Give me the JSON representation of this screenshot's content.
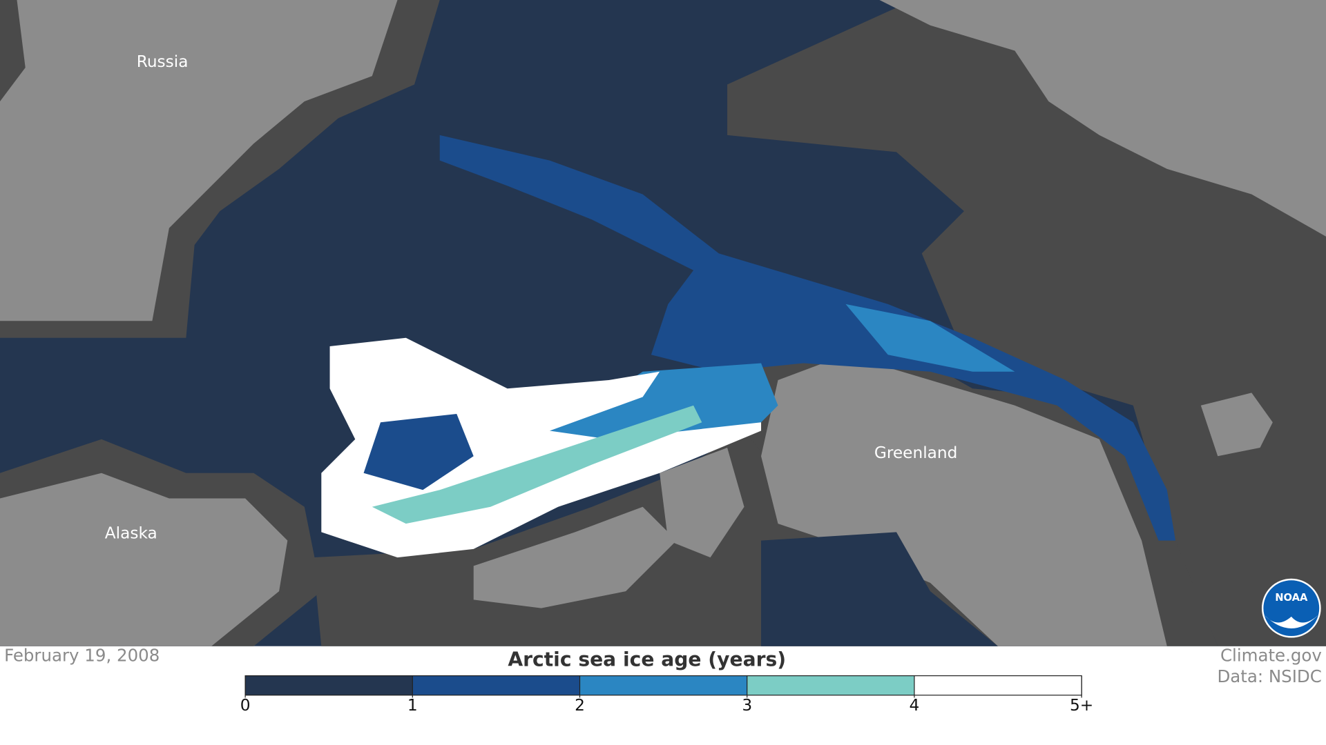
{
  "map": {
    "labels": [
      "Russia",
      "Alaska",
      "Greenland"
    ]
  },
  "date": "February 19, 2008",
  "legend": {
    "title": "Arctic sea ice age (years)",
    "range": [
      0,
      5
    ],
    "ticks": [
      0,
      1,
      2,
      3,
      4,
      {
        "value": 5,
        "label": "5+"
      }
    ],
    "colors": [
      "#243650",
      "#1b4c8c",
      "#2b86c2",
      "#7ccdc5",
      "#ffffff"
    ]
  },
  "credits": [
    "Climate.gov",
    "Data: NSIDC"
  ],
  "logo": "NOAA"
}
